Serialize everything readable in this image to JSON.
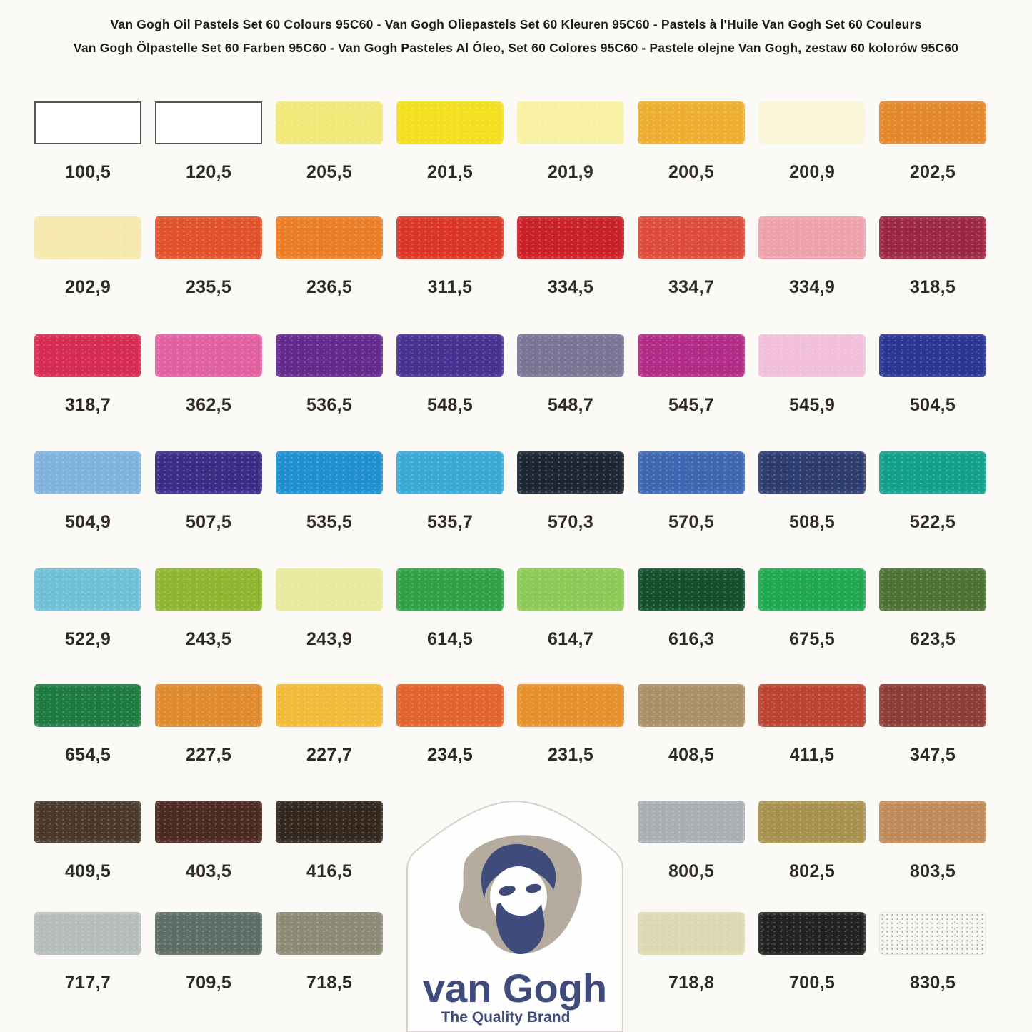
{
  "page": {
    "background": "#fbfaf7",
    "label_color": "#2d2a27"
  },
  "header": {
    "title_line1": "Van Gogh Oil Pastels Set 60 Colours 95C60 - Van Gogh Oliepastels Set 60 Kleuren 95C60 - Pastels à l'Huile Van Gogh Set 60 Couleurs",
    "title_line2": "Van Gogh Ölpastelle Set 60 Farben 95C60 - Van Gogh Pasteles Al Óleo, Set 60 Colores 95C60 - Pastele olejne Van Gogh, zestaw 60 kolorów 95C60"
  },
  "swatch_rows": [
    {
      "cells": [
        {
          "code": "100,5",
          "color": "#ffffff",
          "variant": "outlined"
        },
        {
          "code": "120,5",
          "color": "#ffffff",
          "variant": "outlined"
        },
        {
          "code": "205,5",
          "color": "#f1e878"
        },
        {
          "code": "201,5",
          "color": "#f3df1e"
        },
        {
          "code": "201,9",
          "color": "#f8f1a4"
        },
        {
          "code": "200,5",
          "color": "#edae2f"
        },
        {
          "code": "200,9",
          "color": "#fbf6d9"
        },
        {
          "code": "202,5",
          "color": "#e3872b"
        }
      ]
    },
    {
      "cells": [
        {
          "code": "202,9",
          "color": "#f6e8ac"
        },
        {
          "code": "235,5",
          "color": "#e1512b"
        },
        {
          "code": "236,5",
          "color": "#ea7d26"
        },
        {
          "code": "311,5",
          "color": "#da3527"
        },
        {
          "code": "334,5",
          "color": "#c92129"
        },
        {
          "code": "334,7",
          "color": "#dd4b3c"
        },
        {
          "code": "334,9",
          "color": "#efa1ab"
        },
        {
          "code": "318,5",
          "color": "#9c2742"
        }
      ]
    },
    {
      "cells": [
        {
          "code": "318,7",
          "color": "#d62b52"
        },
        {
          "code": "362,5",
          "color": "#e160a0"
        },
        {
          "code": "536,5",
          "color": "#63298c"
        },
        {
          "code": "548,5",
          "color": "#473191"
        },
        {
          "code": "548,7",
          "color": "#7b7495"
        },
        {
          "code": "545,7",
          "color": "#b22b86"
        },
        {
          "code": "545,9",
          "color": "#f1bedb"
        },
        {
          "code": "504,5",
          "color": "#2b3593"
        }
      ]
    },
    {
      "cells": [
        {
          "code": "504,9",
          "color": "#7fb2dc"
        },
        {
          "code": "507,5",
          "color": "#3b2d85"
        },
        {
          "code": "535,5",
          "color": "#1f8fcf"
        },
        {
          "code": "535,7",
          "color": "#38a9d4"
        },
        {
          "code": "570,3",
          "color": "#1c2733"
        },
        {
          "code": "570,5",
          "color": "#3e66b1"
        },
        {
          "code": "508,5",
          "color": "#2d3d70"
        },
        {
          "code": "522,5",
          "color": "#13a08b"
        }
      ]
    },
    {
      "cells": [
        {
          "code": "522,9",
          "color": "#70c0d5"
        },
        {
          "code": "243,5",
          "color": "#8db52f"
        },
        {
          "code": "243,9",
          "color": "#e8ea9d"
        },
        {
          "code": "614,5",
          "color": "#2fa044"
        },
        {
          "code": "614,7",
          "color": "#8dc957"
        },
        {
          "code": "616,3",
          "color": "#134f2d"
        },
        {
          "code": "675,5",
          "color": "#1fa84d"
        },
        {
          "code": "623,5",
          "color": "#4b7134"
        }
      ]
    },
    {
      "cells": [
        {
          "code": "654,5",
          "color": "#1d7b40"
        },
        {
          "code": "227,5",
          "color": "#df8a2d"
        },
        {
          "code": "227,7",
          "color": "#f1ba39"
        },
        {
          "code": "234,5",
          "color": "#e1632d"
        },
        {
          "code": "231,5",
          "color": "#e5902b"
        },
        {
          "code": "408,5",
          "color": "#aa9067"
        },
        {
          "code": "411,5",
          "color": "#bb4330"
        },
        {
          "code": "347,5",
          "color": "#8d3c37"
        }
      ]
    },
    {
      "cells": [
        {
          "code": "409,5",
          "color": "#4a392b"
        },
        {
          "code": "403,5",
          "color": "#4b2a21"
        },
        {
          "code": "416,5",
          "color": "#34271e"
        },
        null,
        null,
        {
          "code": "800,5",
          "color": "#a9aeb3"
        },
        {
          "code": "802,5",
          "color": "#a8914f"
        },
        {
          "code": "803,5",
          "color": "#bf8a59"
        }
      ]
    },
    {
      "cells": [
        {
          "code": "717,7",
          "color": "#b5bcba"
        },
        {
          "code": "709,5",
          "color": "#5d6d65"
        },
        {
          "code": "718,5",
          "color": "#8b8b75"
        },
        null,
        null,
        {
          "code": "718,8",
          "color": "#ddd8b3"
        },
        {
          "code": "700,5",
          "color": "#232221"
        },
        {
          "code": "830,5",
          "color": "#f7f6f1",
          "variant": "speckled"
        }
      ]
    }
  ],
  "logo": {
    "brand": "van Gogh",
    "tagline": "The Quality Brand",
    "navy": "#3f4b7a",
    "palette_gray": "#b5ac9f",
    "shield_fill": "#fefefe",
    "shield_border": "#d6d2ca"
  }
}
